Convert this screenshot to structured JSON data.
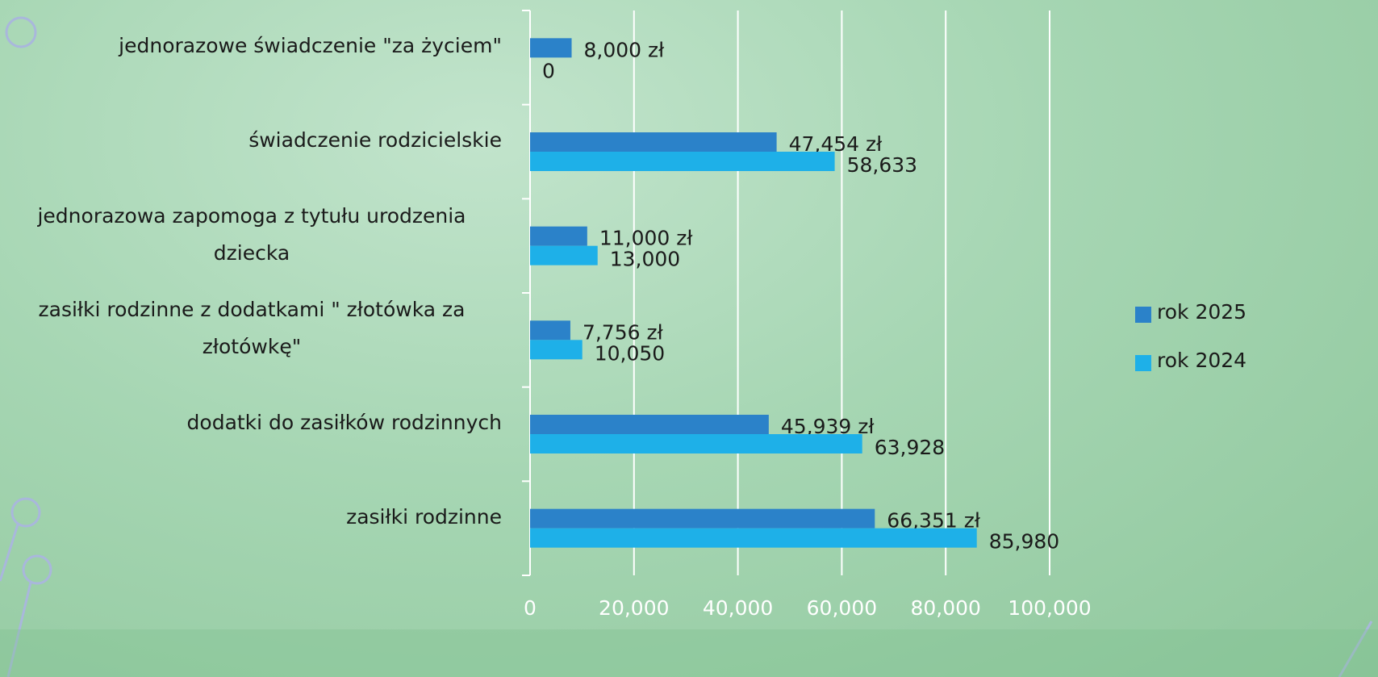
{
  "chart_data": {
    "type": "bar",
    "orientation": "horizontal",
    "categories": [
      "jednorazowe świadczenie \"za życiem\"",
      "świadczenie rodzicielskie",
      "jednorazowa zapomoga z tytułu urodzenia dziecka",
      "zasiłki rodzinne z dodatkami \" złotówka za złotówkę\"",
      "dodatki do zasiłków rodzinnych",
      "zasiłki rodzinne"
    ],
    "series": [
      {
        "name": "rok 2025",
        "color": "#2b82c9",
        "values": [
          8000,
          47454,
          11000,
          7756,
          45939,
          66351
        ],
        "value_labels": [
          "8,000 zł",
          "47,454 zł",
          "11,000 zł",
          "7,756 zł",
          "45,939 zł",
          "66,351 zł"
        ]
      },
      {
        "name": "rok 2024",
        "color": "#1eb0e8",
        "values": [
          0,
          58633,
          13000,
          10050,
          63928,
          85980
        ],
        "value_labels": [
          "0",
          "58,633",
          "13,000",
          "10,050",
          "63,928",
          "85,980"
        ]
      }
    ],
    "xlim": [
      0,
      100000
    ],
    "xticks": [
      0,
      {
        "value": 20000,
        "label": "20,000"
      },
      {
        "value": 40000,
        "label": "40,000"
      },
      {
        "value": 60000,
        "label": "60,000"
      },
      {
        "value": 80000,
        "label": "80,000"
      },
      {
        "value": 100000,
        "label": "100,000"
      }
    ],
    "grid": true,
    "legend": "right"
  }
}
